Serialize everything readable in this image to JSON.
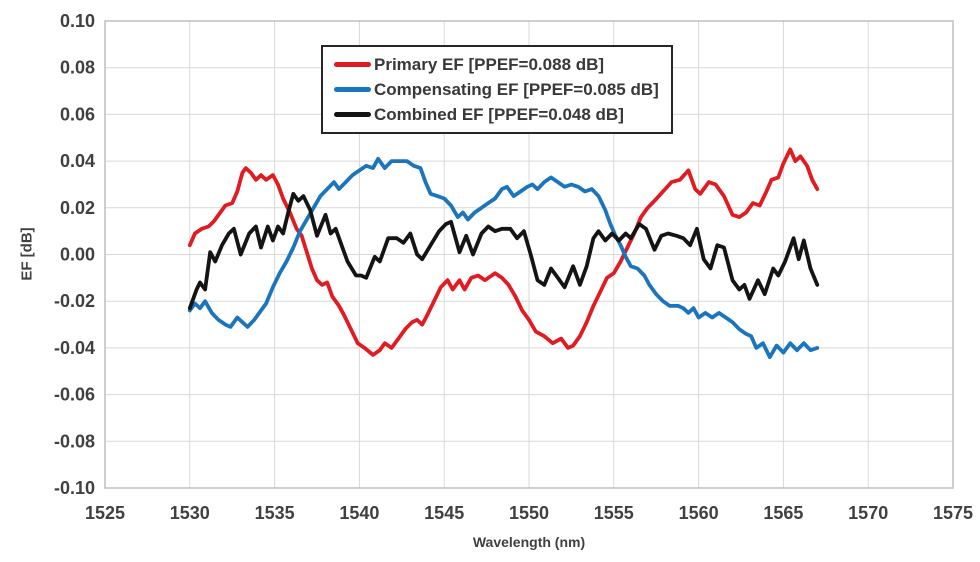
{
  "colors": {
    "background": "#ffffff",
    "grid": "#d9d9d9",
    "plot_border": "#bfbfbf",
    "axis_text": "#404040",
    "legend_border": "#262626",
    "legend_text": "#383838"
  },
  "chart_data": {
    "type": "line",
    "title": "",
    "xlabel": "Wavelength (nm)",
    "ylabel": "EF [dB]",
    "xlim": [
      1525,
      1575
    ],
    "ylim": [
      -0.1,
      0.1
    ],
    "x_ticks": [
      1525,
      1530,
      1535,
      1540,
      1545,
      1550,
      1555,
      1560,
      1565,
      1570,
      1575
    ],
    "y_tick_labels": [
      "0.10",
      "0.08",
      "0.06",
      "0.04",
      "0.02",
      "0.00",
      "-0.02",
      "-0.04",
      "-0.06",
      "-0.08",
      "-0.10"
    ],
    "grid": true,
    "legend_position": "top-center-inside",
    "series": [
      {
        "name": "Primary EF [PPEF=0.088 dB]",
        "color": "#e11b22",
        "points": [
          [
            1530.0,
            0.004
          ],
          [
            1530.3,
            0.009
          ],
          [
            1530.7,
            0.011
          ],
          [
            1531.1,
            0.012
          ],
          [
            1531.4,
            0.014
          ],
          [
            1531.8,
            0.018
          ],
          [
            1532.1,
            0.021
          ],
          [
            1532.5,
            0.022
          ],
          [
            1532.8,
            0.027
          ],
          [
            1533.1,
            0.035
          ],
          [
            1533.3,
            0.037
          ],
          [
            1533.6,
            0.035
          ],
          [
            1533.9,
            0.032
          ],
          [
            1534.2,
            0.034
          ],
          [
            1534.5,
            0.032
          ],
          [
            1534.9,
            0.034
          ],
          [
            1535.2,
            0.03
          ],
          [
            1535.5,
            0.024
          ],
          [
            1535.9,
            0.018
          ],
          [
            1536.3,
            0.011
          ],
          [
            1536.6,
            0.008
          ],
          [
            1536.9,
            0.001
          ],
          [
            1537.2,
            -0.006
          ],
          [
            1537.5,
            -0.011
          ],
          [
            1537.8,
            -0.013
          ],
          [
            1538.1,
            -0.012
          ],
          [
            1538.4,
            -0.018
          ],
          [
            1538.8,
            -0.022
          ],
          [
            1539.1,
            -0.026
          ],
          [
            1539.5,
            -0.032
          ],
          [
            1539.9,
            -0.038
          ],
          [
            1540.3,
            -0.04
          ],
          [
            1540.8,
            -0.043
          ],
          [
            1541.2,
            -0.041
          ],
          [
            1541.5,
            -0.038
          ],
          [
            1541.9,
            -0.04
          ],
          [
            1542.3,
            -0.036
          ],
          [
            1542.7,
            -0.032
          ],
          [
            1543.1,
            -0.029
          ],
          [
            1543.4,
            -0.028
          ],
          [
            1543.7,
            -0.03
          ],
          [
            1544.0,
            -0.026
          ],
          [
            1544.4,
            -0.02
          ],
          [
            1544.8,
            -0.014
          ],
          [
            1545.2,
            -0.011
          ],
          [
            1545.5,
            -0.015
          ],
          [
            1545.9,
            -0.011
          ],
          [
            1546.2,
            -0.015
          ],
          [
            1546.6,
            -0.01
          ],
          [
            1547.0,
            -0.009
          ],
          [
            1547.4,
            -0.011
          ],
          [
            1548.0,
            -0.008
          ],
          [
            1548.4,
            -0.01
          ],
          [
            1548.8,
            -0.013
          ],
          [
            1549.2,
            -0.018
          ],
          [
            1549.6,
            -0.024
          ],
          [
            1550.0,
            -0.028
          ],
          [
            1550.4,
            -0.033
          ],
          [
            1550.9,
            -0.035
          ],
          [
            1551.4,
            -0.038
          ],
          [
            1551.9,
            -0.036
          ],
          [
            1552.3,
            -0.04
          ],
          [
            1552.6,
            -0.039
          ],
          [
            1553.0,
            -0.035
          ],
          [
            1553.4,
            -0.029
          ],
          [
            1553.8,
            -0.022
          ],
          [
            1554.2,
            -0.016
          ],
          [
            1554.6,
            -0.01
          ],
          [
            1555.0,
            -0.008
          ],
          [
            1555.4,
            -0.003
          ],
          [
            1555.8,
            0.003
          ],
          [
            1556.2,
            0.009
          ],
          [
            1556.6,
            0.016
          ],
          [
            1557.0,
            0.02
          ],
          [
            1557.4,
            0.023
          ],
          [
            1557.9,
            0.027
          ],
          [
            1558.4,
            0.031
          ],
          [
            1558.9,
            0.032
          ],
          [
            1559.4,
            0.036
          ],
          [
            1559.8,
            0.028
          ],
          [
            1560.1,
            0.026
          ],
          [
            1560.6,
            0.031
          ],
          [
            1561.0,
            0.03
          ],
          [
            1561.5,
            0.025
          ],
          [
            1562.0,
            0.017
          ],
          [
            1562.4,
            0.016
          ],
          [
            1562.8,
            0.018
          ],
          [
            1563.2,
            0.022
          ],
          [
            1563.6,
            0.021
          ],
          [
            1564.0,
            0.027
          ],
          [
            1564.3,
            0.032
          ],
          [
            1564.7,
            0.033
          ],
          [
            1565.0,
            0.039
          ],
          [
            1565.4,
            0.045
          ],
          [
            1565.7,
            0.04
          ],
          [
            1566.0,
            0.042
          ],
          [
            1566.4,
            0.038
          ],
          [
            1566.7,
            0.032
          ],
          [
            1567.0,
            0.028
          ]
        ]
      },
      {
        "name": "Compensating EF [PPEF=0.085 dB]",
        "color": "#1b75bc",
        "points": [
          [
            1530.0,
            -0.024
          ],
          [
            1530.3,
            -0.021
          ],
          [
            1530.6,
            -0.023
          ],
          [
            1530.9,
            -0.02
          ],
          [
            1531.3,
            -0.025
          ],
          [
            1531.7,
            -0.028
          ],
          [
            1532.1,
            -0.03
          ],
          [
            1532.4,
            -0.031
          ],
          [
            1532.8,
            -0.027
          ],
          [
            1533.1,
            -0.029
          ],
          [
            1533.4,
            -0.031
          ],
          [
            1533.8,
            -0.028
          ],
          [
            1534.1,
            -0.025
          ],
          [
            1534.5,
            -0.021
          ],
          [
            1534.9,
            -0.014
          ],
          [
            1535.3,
            -0.008
          ],
          [
            1535.7,
            -0.003
          ],
          [
            1536.1,
            0.003
          ],
          [
            1536.5,
            0.01
          ],
          [
            1536.9,
            0.015
          ],
          [
            1537.3,
            0.02
          ],
          [
            1537.7,
            0.025
          ],
          [
            1538.1,
            0.028
          ],
          [
            1538.5,
            0.031
          ],
          [
            1538.8,
            0.028
          ],
          [
            1539.2,
            0.031
          ],
          [
            1539.6,
            0.034
          ],
          [
            1540.0,
            0.036
          ],
          [
            1540.4,
            0.038
          ],
          [
            1540.8,
            0.037
          ],
          [
            1541.1,
            0.041
          ],
          [
            1541.5,
            0.037
          ],
          [
            1541.9,
            0.04
          ],
          [
            1542.4,
            0.04
          ],
          [
            1542.8,
            0.04
          ],
          [
            1543.2,
            0.038
          ],
          [
            1543.6,
            0.037
          ],
          [
            1543.9,
            0.031
          ],
          [
            1544.2,
            0.026
          ],
          [
            1544.6,
            0.025
          ],
          [
            1545.0,
            0.024
          ],
          [
            1545.4,
            0.021
          ],
          [
            1545.8,
            0.016
          ],
          [
            1546.1,
            0.018
          ],
          [
            1546.4,
            0.015
          ],
          [
            1546.8,
            0.018
          ],
          [
            1547.2,
            0.02
          ],
          [
            1547.6,
            0.022
          ],
          [
            1548.0,
            0.024
          ],
          [
            1548.4,
            0.028
          ],
          [
            1548.7,
            0.029
          ],
          [
            1549.1,
            0.025
          ],
          [
            1549.5,
            0.027
          ],
          [
            1549.9,
            0.029
          ],
          [
            1550.2,
            0.03
          ],
          [
            1550.5,
            0.028
          ],
          [
            1550.9,
            0.031
          ],
          [
            1551.3,
            0.033
          ],
          [
            1551.7,
            0.031
          ],
          [
            1552.1,
            0.029
          ],
          [
            1552.5,
            0.03
          ],
          [
            1552.9,
            0.029
          ],
          [
            1553.3,
            0.027
          ],
          [
            1553.7,
            0.028
          ],
          [
            1554.1,
            0.025
          ],
          [
            1554.5,
            0.019
          ],
          [
            1554.8,
            0.013
          ],
          [
            1555.1,
            0.008
          ],
          [
            1555.4,
            0.004
          ],
          [
            1555.7,
            -0.001
          ],
          [
            1556.0,
            -0.005
          ],
          [
            1556.4,
            -0.006
          ],
          [
            1556.8,
            -0.009
          ],
          [
            1557.1,
            -0.013
          ],
          [
            1557.5,
            -0.017
          ],
          [
            1557.9,
            -0.02
          ],
          [
            1558.3,
            -0.022
          ],
          [
            1558.8,
            -0.022
          ],
          [
            1559.1,
            -0.023
          ],
          [
            1559.4,
            -0.025
          ],
          [
            1559.7,
            -0.023
          ],
          [
            1560.0,
            -0.027
          ],
          [
            1560.4,
            -0.025
          ],
          [
            1560.8,
            -0.027
          ],
          [
            1561.2,
            -0.025
          ],
          [
            1561.6,
            -0.027
          ],
          [
            1562.0,
            -0.029
          ],
          [
            1562.4,
            -0.032
          ],
          [
            1562.8,
            -0.034
          ],
          [
            1563.1,
            -0.035
          ],
          [
            1563.4,
            -0.04
          ],
          [
            1563.8,
            -0.038
          ],
          [
            1564.2,
            -0.044
          ],
          [
            1564.6,
            -0.039
          ],
          [
            1565.0,
            -0.042
          ],
          [
            1565.4,
            -0.038
          ],
          [
            1565.8,
            -0.041
          ],
          [
            1566.2,
            -0.038
          ],
          [
            1566.6,
            -0.041
          ],
          [
            1567.0,
            -0.04
          ]
        ]
      },
      {
        "name": "Combined EF [PPEF=0.048 dB]",
        "color": "#141414",
        "points": [
          [
            1530.0,
            -0.023
          ],
          [
            1530.4,
            -0.015
          ],
          [
            1530.6,
            -0.012
          ],
          [
            1530.9,
            -0.015
          ],
          [
            1531.2,
            0.001
          ],
          [
            1531.5,
            -0.003
          ],
          [
            1531.9,
            0.004
          ],
          [
            1532.3,
            0.009
          ],
          [
            1532.6,
            0.011
          ],
          [
            1533.0,
            0.0
          ],
          [
            1533.5,
            0.009
          ],
          [
            1533.9,
            0.012
          ],
          [
            1534.2,
            0.003
          ],
          [
            1534.6,
            0.012
          ],
          [
            1534.9,
            0.006
          ],
          [
            1535.2,
            0.012
          ],
          [
            1535.5,
            0.009
          ],
          [
            1535.8,
            0.018
          ],
          [
            1536.1,
            0.026
          ],
          [
            1536.4,
            0.023
          ],
          [
            1536.7,
            0.025
          ],
          [
            1537.1,
            0.019
          ],
          [
            1537.5,
            0.008
          ],
          [
            1538.0,
            0.017
          ],
          [
            1538.3,
            0.009
          ],
          [
            1538.6,
            0.011
          ],
          [
            1539.0,
            0.003
          ],
          [
            1539.3,
            -0.003
          ],
          [
            1539.8,
            -0.009
          ],
          [
            1540.1,
            -0.009
          ],
          [
            1540.4,
            -0.01
          ],
          [
            1540.9,
            -0.001
          ],
          [
            1541.2,
            -0.003
          ],
          [
            1541.7,
            0.007
          ],
          [
            1542.2,
            0.007
          ],
          [
            1542.6,
            0.005
          ],
          [
            1543.0,
            0.009
          ],
          [
            1543.4,
            0.0
          ],
          [
            1543.7,
            -0.002
          ],
          [
            1544.2,
            0.004
          ],
          [
            1544.7,
            0.01
          ],
          [
            1545.1,
            0.013
          ],
          [
            1545.4,
            0.014
          ],
          [
            1545.9,
            0.001
          ],
          [
            1546.3,
            0.008
          ],
          [
            1546.7,
            0.0
          ],
          [
            1547.2,
            0.009
          ],
          [
            1547.6,
            0.012
          ],
          [
            1548.0,
            0.01
          ],
          [
            1548.4,
            0.011
          ],
          [
            1548.9,
            0.011
          ],
          [
            1549.3,
            0.007
          ],
          [
            1549.7,
            0.01
          ],
          [
            1550.1,
            0.0
          ],
          [
            1550.5,
            -0.011
          ],
          [
            1550.9,
            -0.013
          ],
          [
            1551.3,
            -0.006
          ],
          [
            1551.7,
            -0.01
          ],
          [
            1552.1,
            -0.014
          ],
          [
            1552.6,
            -0.005
          ],
          [
            1553.0,
            -0.013
          ],
          [
            1553.4,
            -0.005
          ],
          [
            1553.8,
            0.007
          ],
          [
            1554.1,
            0.01
          ],
          [
            1554.5,
            0.006
          ],
          [
            1554.9,
            0.009
          ],
          [
            1555.3,
            0.006
          ],
          [
            1555.7,
            0.009
          ],
          [
            1556.0,
            0.007
          ],
          [
            1556.5,
            0.013
          ],
          [
            1556.9,
            0.011
          ],
          [
            1557.4,
            0.002
          ],
          [
            1557.8,
            0.008
          ],
          [
            1558.2,
            0.009
          ],
          [
            1558.7,
            0.008
          ],
          [
            1559.1,
            0.007
          ],
          [
            1559.5,
            0.004
          ],
          [
            1559.9,
            0.011
          ],
          [
            1560.3,
            -0.002
          ],
          [
            1560.7,
            -0.006
          ],
          [
            1561.1,
            0.004
          ],
          [
            1561.5,
            0.003
          ],
          [
            1562.0,
            -0.011
          ],
          [
            1562.4,
            -0.015
          ],
          [
            1562.7,
            -0.013
          ],
          [
            1563.0,
            -0.019
          ],
          [
            1563.5,
            -0.011
          ],
          [
            1563.9,
            -0.017
          ],
          [
            1564.4,
            -0.006
          ],
          [
            1564.7,
            -0.009
          ],
          [
            1565.1,
            -0.003
          ],
          [
            1565.6,
            0.007
          ],
          [
            1565.9,
            -0.002
          ],
          [
            1566.2,
            0.006
          ],
          [
            1566.6,
            -0.006
          ],
          [
            1567.0,
            -0.013
          ]
        ]
      }
    ]
  }
}
